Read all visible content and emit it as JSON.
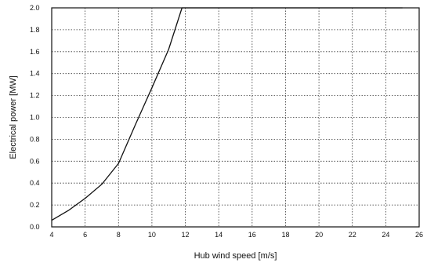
{
  "chart_data": {
    "type": "line",
    "title": "",
    "xlabel": "Hub wind speed [m/s]",
    "ylabel": "Electrical power [MW]",
    "xlim": [
      4,
      26
    ],
    "ylim": [
      0.0,
      2.0
    ],
    "x_ticks": [
      "4",
      "6",
      "8",
      "10",
      "12",
      "14",
      "16",
      "18",
      "20",
      "22",
      "24",
      "26"
    ],
    "y_ticks": [
      "0.0",
      "0.2",
      "0.4",
      "0.6",
      "0.8",
      "1.0",
      "1.2",
      "1.4",
      "1.6",
      "1.8",
      "2.0"
    ],
    "grid": true,
    "series": [
      {
        "x": [
          4,
          5,
          6,
          7,
          8,
          9,
          10,
          11,
          11.8,
          12,
          14,
          16,
          18,
          20,
          22,
          24,
          25
        ],
        "y": [
          0.06,
          0.15,
          0.26,
          0.39,
          0.58,
          0.93,
          1.27,
          1.62,
          2.0,
          2.0,
          2.0,
          2.0,
          2.0,
          2.0,
          2.0,
          2.0,
          2.0
        ]
      }
    ]
  }
}
